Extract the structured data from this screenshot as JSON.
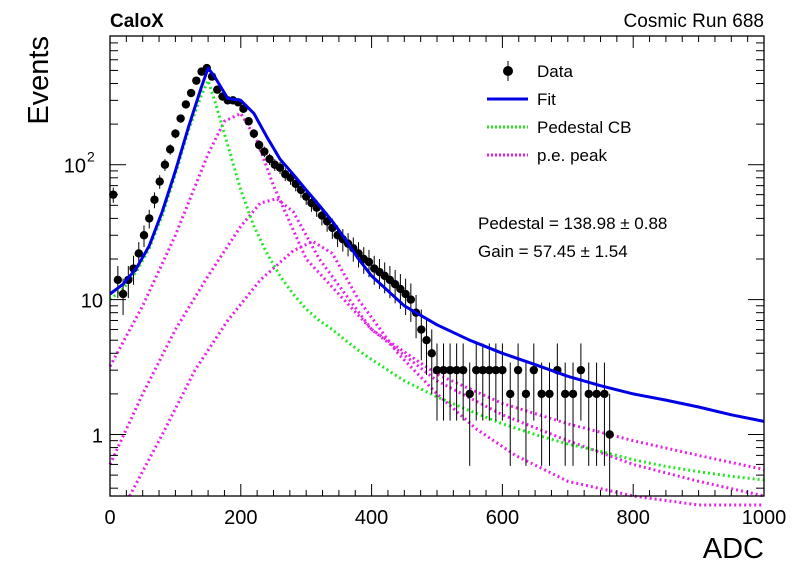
{
  "header": {
    "experiment": "CaloX",
    "run_label": "Cosmic Run 688"
  },
  "fit_results": {
    "pedestal": "Pedestal = 138.98 ± 0.88",
    "gain": "Gain = 57.45 ± 1.54"
  },
  "colors": {
    "data": "#000000",
    "fit": "#0000e6",
    "pedestal_cb": "#22e622",
    "pe_peak": "#e622e6"
  },
  "chart_data": {
    "type": "scatter",
    "xlabel": "ADC",
    "ylabel": "Events",
    "xlim": [
      0,
      1000
    ],
    "ylim": [
      0.35,
      900
    ],
    "yscale": "log",
    "grid": false,
    "legend_position": "top-right",
    "x_ticks": [
      "0",
      "200",
      "400",
      "600",
      "800",
      "1000"
    ],
    "y_ticks": [
      {
        "value": 1,
        "label": "1"
      },
      {
        "value": 10,
        "label": "10"
      },
      {
        "value": 100,
        "label": "10",
        "exponent": "2"
      }
    ],
    "legend": [
      {
        "key": "data",
        "label": "Data",
        "style": "marker"
      },
      {
        "key": "fit",
        "label": "Fit",
        "style": "solid"
      },
      {
        "key": "pedestal_cb",
        "label": "Pedestal CB",
        "style": "dotted"
      },
      {
        "key": "pe_peak",
        "label": "p.e. peak",
        "style": "dotted"
      }
    ],
    "data_points": {
      "name": "Data",
      "x": [
        5,
        12,
        20,
        28,
        36,
        44,
        52,
        60,
        68,
        76,
        84,
        92,
        100,
        108,
        116,
        124,
        132,
        140,
        148,
        156,
        164,
        172,
        180,
        188,
        196,
        204,
        212,
        220,
        228,
        236,
        244,
        252,
        260,
        268,
        276,
        284,
        292,
        300,
        308,
        316,
        324,
        332,
        340,
        348,
        356,
        364,
        372,
        380,
        388,
        396,
        404,
        412,
        420,
        428,
        436,
        444,
        452,
        460,
        468,
        476,
        484,
        492,
        500,
        510,
        520,
        530,
        540,
        550,
        560,
        570,
        580,
        590,
        600,
        612,
        624,
        636,
        648,
        660,
        672,
        684,
        696,
        708,
        720,
        732,
        744,
        756,
        764
      ],
      "y": [
        60,
        14,
        11,
        14,
        17,
        22,
        30,
        40,
        55,
        75,
        100,
        130,
        170,
        220,
        280,
        340,
        420,
        490,
        520,
        450,
        360,
        320,
        300,
        300,
        290,
        260,
        210,
        170,
        140,
        125,
        110,
        100,
        95,
        85,
        80,
        72,
        65,
        58,
        52,
        48,
        42,
        38,
        34,
        30,
        28,
        26,
        24,
        22,
        20,
        19,
        17,
        16,
        15,
        14,
        13,
        12,
        11,
        10,
        8,
        6,
        5,
        4,
        3,
        3,
        3,
        3,
        3,
        2,
        3,
        3,
        3,
        3,
        3,
        2,
        3,
        2,
        3,
        2,
        2,
        3,
        2,
        2,
        3,
        2,
        2,
        2,
        1
      ]
    },
    "series": [
      {
        "key": "fit",
        "name": "Fit",
        "x": [
          0,
          20,
          40,
          60,
          80,
          100,
          120,
          140,
          150,
          160,
          180,
          200,
          220,
          240,
          260,
          280,
          300,
          320,
          340,
          360,
          380,
          400,
          450,
          500,
          550,
          600,
          650,
          700,
          750,
          800,
          850,
          900,
          950,
          1000
        ],
        "y": [
          11,
          13,
          17,
          25,
          45,
          90,
          190,
          380,
          520,
          450,
          310,
          300,
          240,
          160,
          110,
          85,
          65,
          50,
          38,
          28,
          20,
          15,
          9,
          6.5,
          5,
          4,
          3.3,
          2.7,
          2.3,
          2,
          1.8,
          1.6,
          1.4,
          1.25
        ]
      },
      {
        "key": "pedestal_cb",
        "name": "Pedestal CB",
        "x": [
          0,
          20,
          40,
          60,
          80,
          100,
          120,
          140,
          150,
          160,
          180,
          200,
          220,
          240,
          260,
          280,
          300,
          320,
          340,
          360,
          380,
          400,
          450,
          500,
          550,
          600,
          650,
          700,
          750,
          800,
          850,
          900,
          950,
          1000
        ],
        "y": [
          10,
          12,
          16,
          24,
          42,
          85,
          180,
          330,
          420,
          300,
          140,
          65,
          35,
          22,
          15,
          11,
          8.5,
          7,
          6,
          5,
          4.2,
          3.6,
          2.5,
          1.9,
          1.5,
          1.2,
          1,
          0.85,
          0.75,
          0.65,
          0.58,
          0.53,
          0.49,
          0.46
        ]
      },
      {
        "key": "pe_peak",
        "name": "p.e. peak",
        "x": [
          0,
          50,
          100,
          150,
          175,
          200,
          225,
          250,
          300,
          400,
          500,
          600,
          700,
          800,
          900,
          1000
        ],
        "y": [
          3.2,
          9,
          30,
          120,
          210,
          240,
          150,
          70,
          20,
          6,
          2.8,
          1.7,
          1.2,
          0.9,
          0.7,
          0.55
        ]
      },
      {
        "key": "pe_peak",
        "name": "p.e. peak",
        "x": [
          0,
          50,
          100,
          150,
          200,
          230,
          255,
          280,
          320,
          400,
          500,
          600,
          700,
          800,
          900,
          1000
        ],
        "y": [
          0.6,
          2,
          6,
          15,
          35,
          52,
          56,
          45,
          20,
          6,
          2.5,
          1.4,
          0.9,
          0.6,
          0.45,
          0.35
        ]
      },
      {
        "key": "pe_peak",
        "name": "p.e. peak",
        "x": [
          30,
          80,
          130,
          180,
          230,
          280,
          310,
          340,
          380,
          440,
          500,
          560,
          620,
          700,
          800,
          900,
          1000
        ],
        "y": [
          0.35,
          1,
          3,
          7,
          14,
          23,
          27,
          22,
          10,
          4,
          2,
          1.1,
          0.7,
          0.45,
          0.35,
          0.3,
          0.25
        ]
      }
    ]
  }
}
